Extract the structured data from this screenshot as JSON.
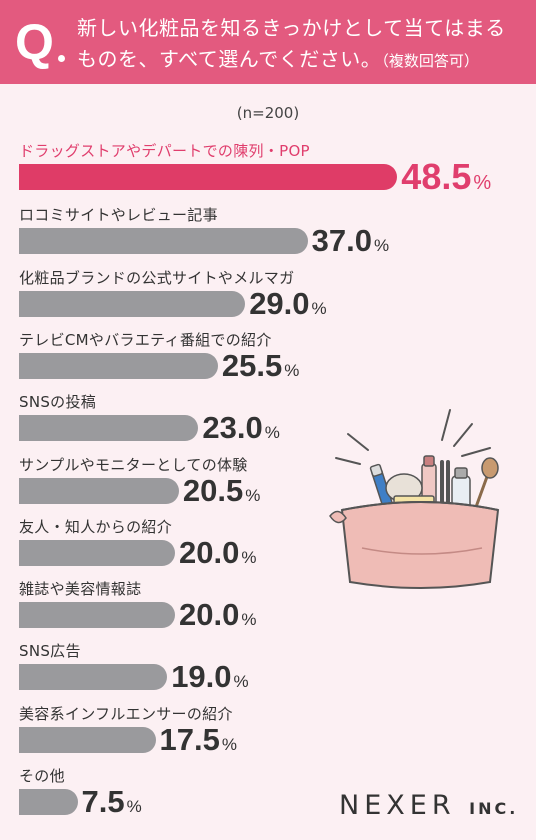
{
  "question": {
    "mark": "Q",
    "line1": "新しい化粧品を知るきっかけとして当てはまる",
    "line2": "ものを、すべて選んでください。",
    "note": "（複数回答可）"
  },
  "sample_size": "(n=200)",
  "colors": {
    "header": "#e35a7f",
    "highlight": "#df3c67",
    "bar": "#9a9a9d",
    "background": "#fcf0f3"
  },
  "chart_data": {
    "type": "bar",
    "orientation": "horizontal",
    "unit": "%",
    "categories": [
      "ドラッグストアやデパートでの陳列・POP",
      "ロコミサイトやレビュー記事",
      "化粧品ブランドの公式サイトやメルマガ",
      "テレビCMやバラエティ番組での紹介",
      "SNSの投稿",
      "サンプルやモニターとしての体験",
      "友人・知人からの紹介",
      "雑誌や美容情報誌",
      "SNS広告",
      "美容系インフルエンサーの紹介",
      "その他"
    ],
    "values": [
      48.5,
      37.0,
      29.0,
      25.5,
      23.0,
      20.5,
      20.0,
      20.0,
      19.0,
      17.5,
      7.5
    ],
    "value_labels": [
      "48.5",
      "37.0",
      "29.0",
      "25.5",
      "23.0",
      "20.5",
      "20.0",
      "20.0",
      "19.0",
      "17.5",
      "7.5"
    ],
    "xlim": [
      0,
      100
    ],
    "highlight_index": 0
  },
  "logo": {
    "name": "NEXER",
    "suffix": "INC."
  },
  "illustration": {
    "name": "cosmetics-pouch-illustration"
  }
}
